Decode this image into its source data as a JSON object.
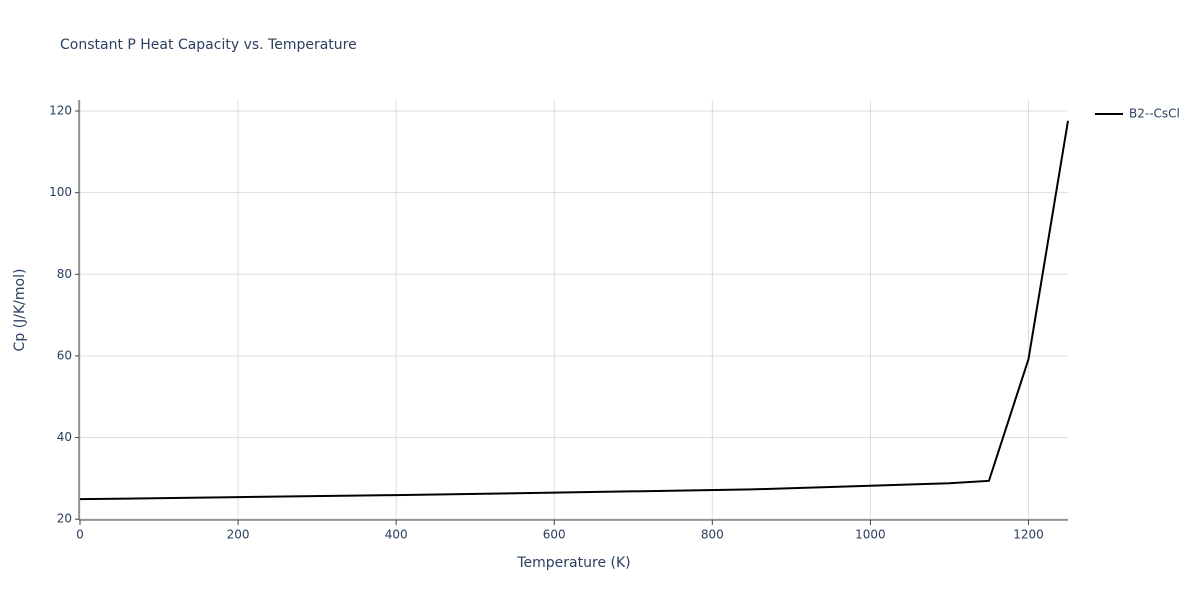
{
  "chart_data": {
    "type": "line",
    "title": "Constant P Heat Capacity vs. Temperature",
    "x_label": "Temperature (K)",
    "y_label": "Cp (J/K/mol)",
    "x": [
      0,
      200,
      400,
      600,
      850,
      1000,
      1100,
      1150,
      1200,
      1250
    ],
    "series": [
      {
        "name": "B2--CsCl",
        "color": "#000000",
        "values": [
          24.9,
          25.4,
          25.9,
          26.5,
          27.3,
          28.2,
          28.8,
          29.4,
          59.2,
          117.6
        ]
      }
    ],
    "xlim": [
      0,
      1250
    ],
    "ylim": [
      19.8,
      122.7
    ],
    "xticks": [
      0,
      200,
      400,
      600,
      800,
      1000,
      1200
    ],
    "yticks": [
      20,
      40,
      60,
      80,
      100,
      120
    ],
    "grid": true,
    "legend": "top-right"
  }
}
